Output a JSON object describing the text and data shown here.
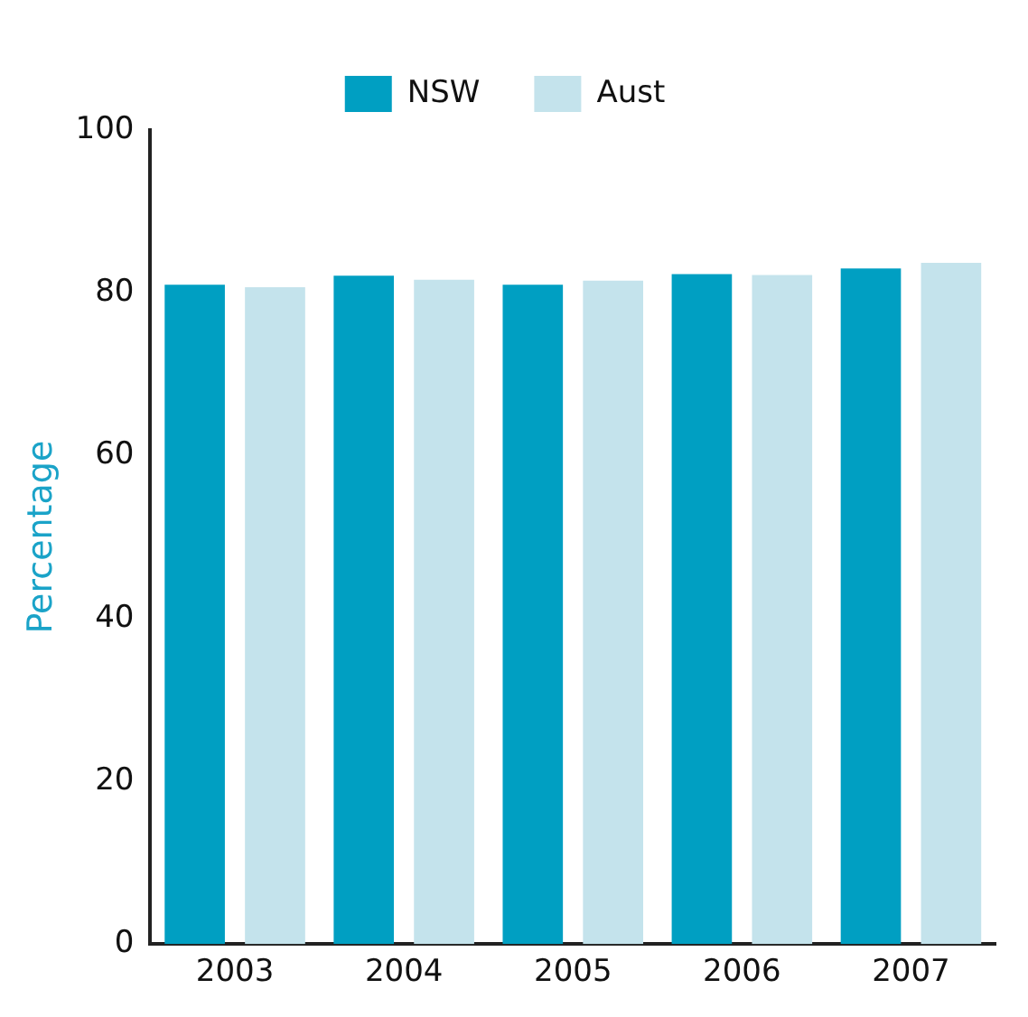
{
  "chart_data": {
    "type": "bar",
    "ylabel": "Percentage",
    "categories": [
      "2003",
      "2004",
      "2005",
      "2006",
      "2007"
    ],
    "series": [
      {
        "name": "NSW",
        "color": "#009fc2",
        "values": [
          81.0,
          82.1,
          81.0,
          82.3,
          83.0
        ]
      },
      {
        "name": "Aust",
        "color": "#c4e3ec",
        "values": [
          80.7,
          81.6,
          81.5,
          82.2,
          83.7
        ]
      }
    ],
    "ylim": [
      0,
      100
    ],
    "yticks": [
      0,
      20,
      40,
      60,
      80,
      100
    ],
    "grid": false,
    "legend": "top"
  }
}
